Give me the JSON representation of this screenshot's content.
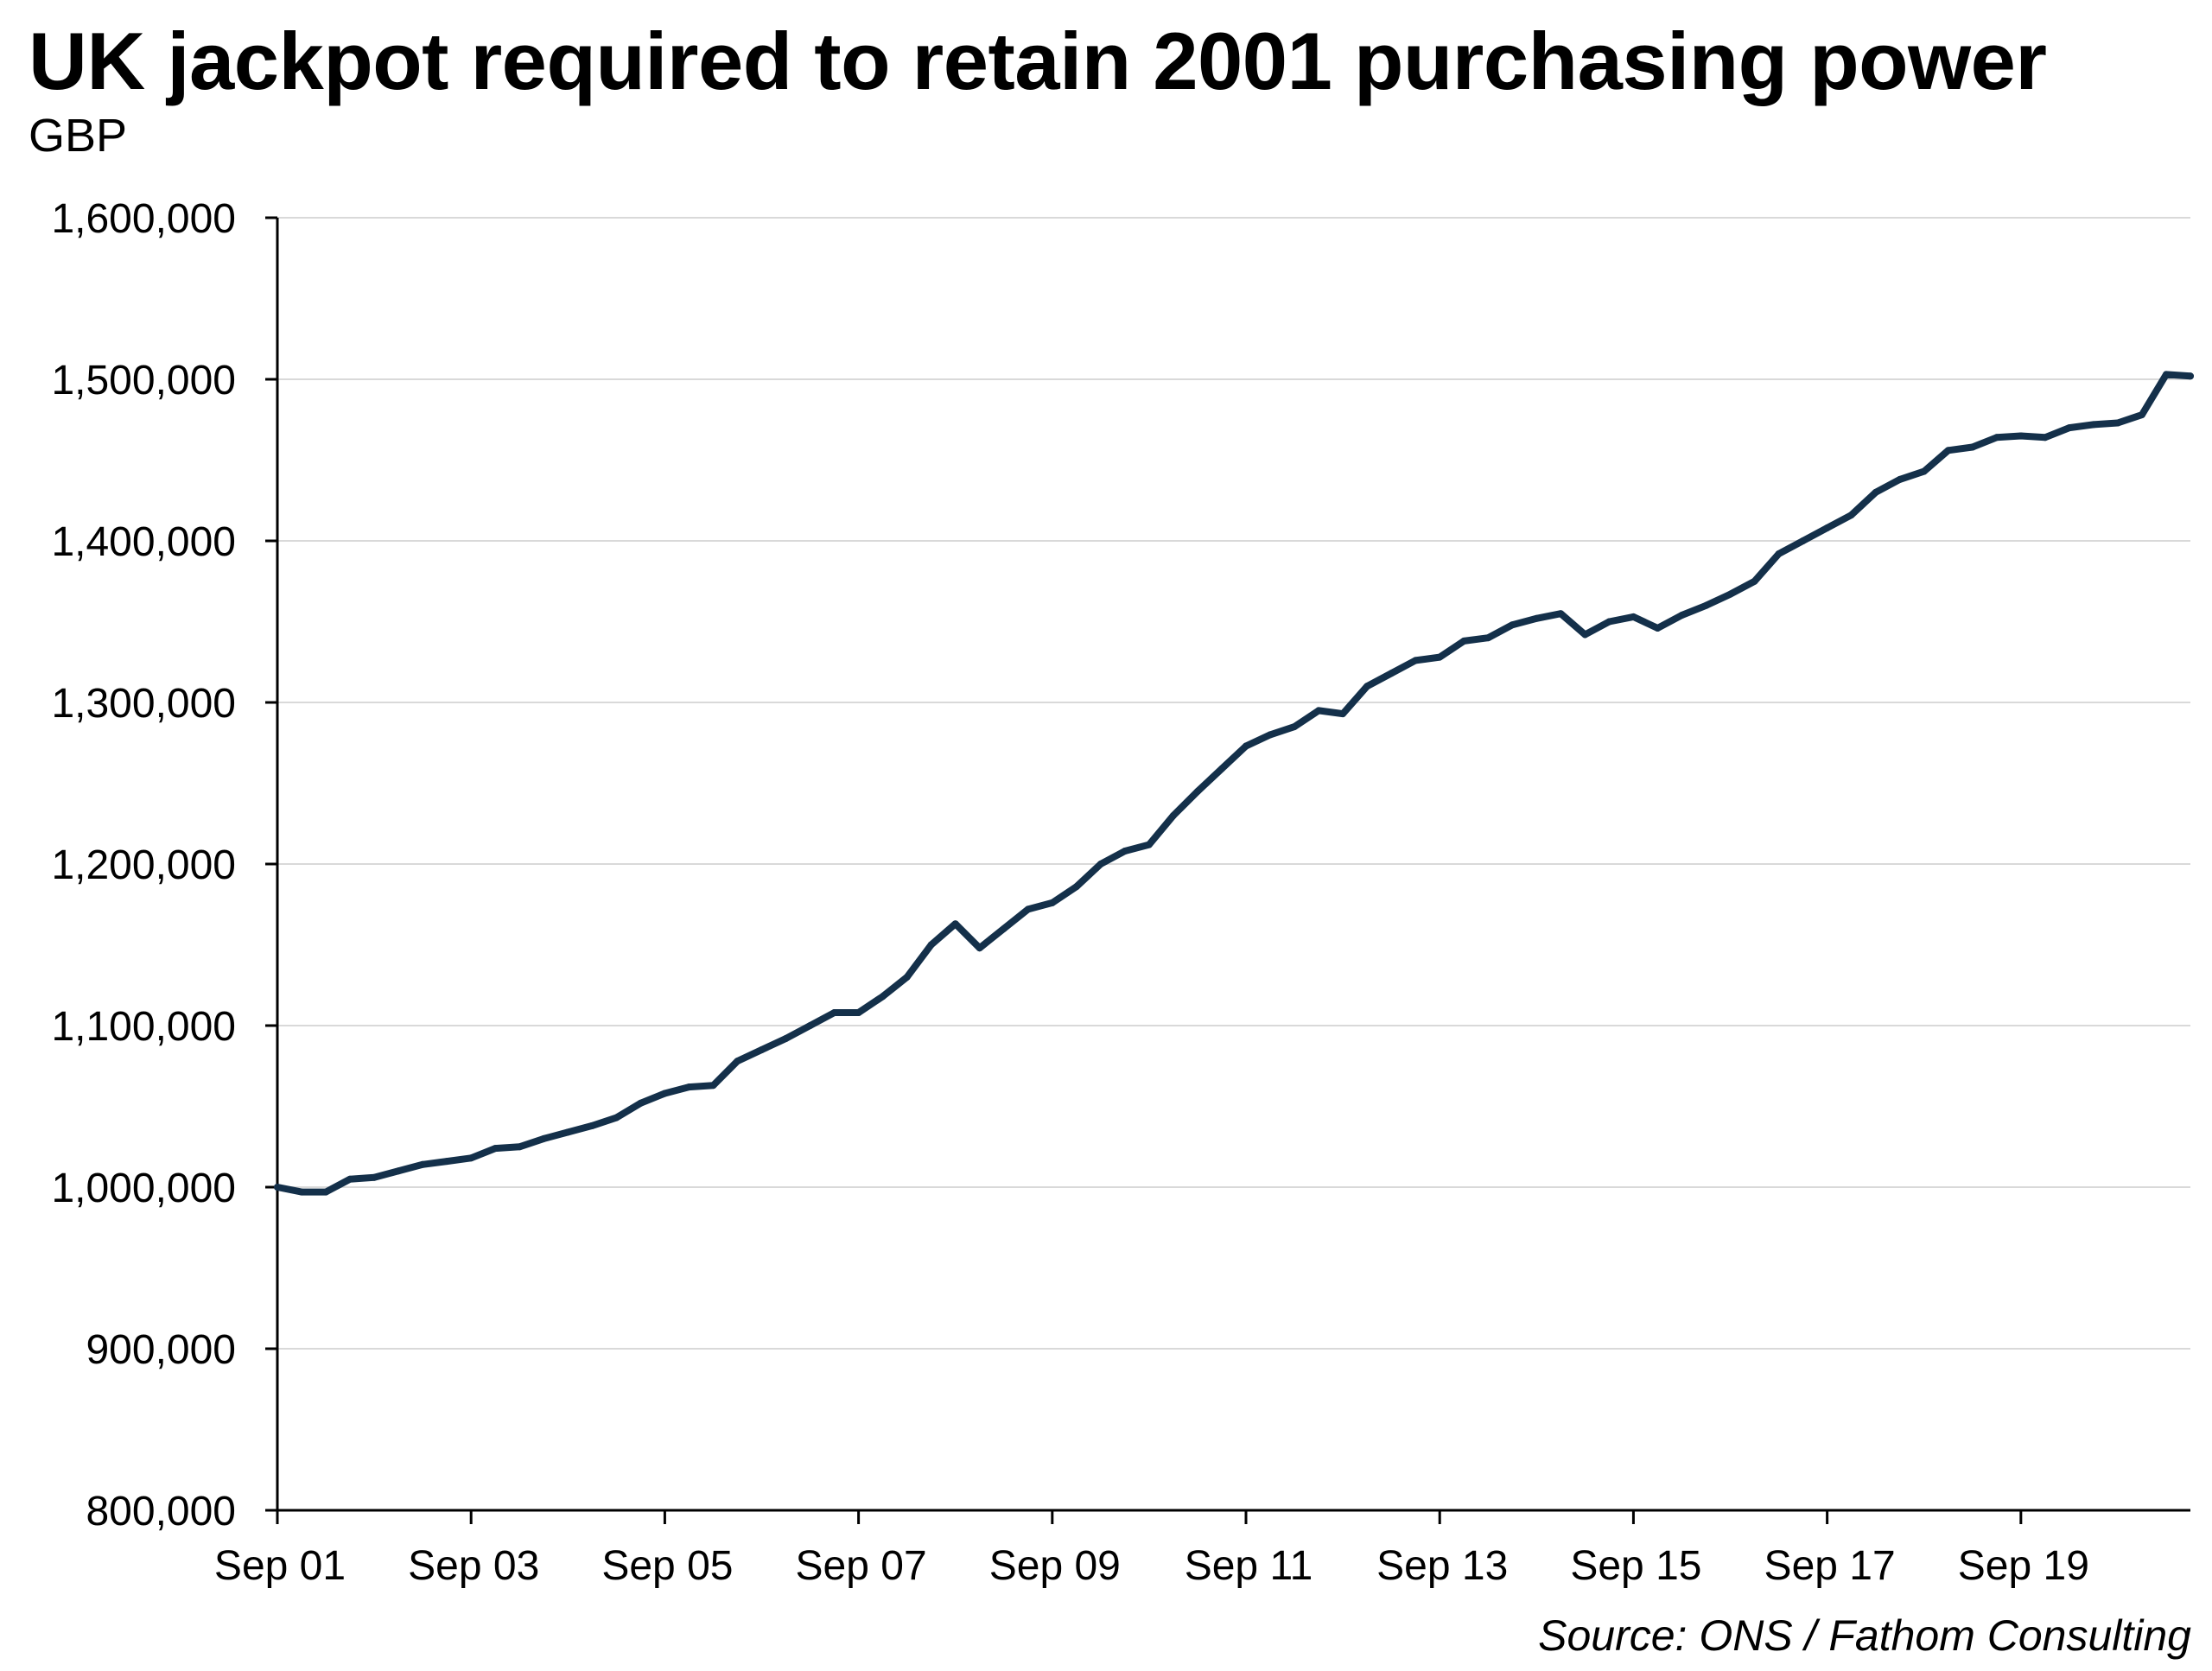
{
  "chart_data": {
    "type": "line",
    "title": "UK jackpot required to retain 2001 purchasing power",
    "subtitle": "GBP",
    "source": "Source: ONS / Fathom Consulting",
    "xlabel": "",
    "ylabel": "",
    "ylim": [
      800000,
      1600000
    ],
    "y_ticks": [
      800000,
      900000,
      1000000,
      1100000,
      1200000,
      1300000,
      1400000,
      1500000,
      1600000
    ],
    "y_tick_labels": [
      "800,000",
      "900,000",
      "1,000,000",
      "1,100,000",
      "1,200,000",
      "1,300,000",
      "1,400,000",
      "1,500,000",
      "1,600,000"
    ],
    "x_range": [
      "2001-09",
      "2021-06"
    ],
    "x_ticks": [
      "2001-09",
      "2003-09",
      "2005-09",
      "2007-09",
      "2009-09",
      "2011-09",
      "2013-09",
      "2015-09",
      "2017-09",
      "2019-09"
    ],
    "x_tick_labels": [
      "Sep 01",
      "Sep 03",
      "Sep 05",
      "Sep 07",
      "Sep 09",
      "Sep 11",
      "Sep 13",
      "Sep 15",
      "Sep 17",
      "Sep 19"
    ],
    "grid": "horizontal",
    "line_color": "#14304a",
    "gridline_color": "#d9d9d9",
    "series": [
      {
        "points": [
          [
            "2001-09",
            1000000
          ],
          [
            "2001-12",
            997000
          ],
          [
            "2002-03",
            997000
          ],
          [
            "2002-06",
            1005000
          ],
          [
            "2002-09",
            1006000
          ],
          [
            "2002-12",
            1010000
          ],
          [
            "2003-03",
            1014000
          ],
          [
            "2003-06",
            1016000
          ],
          [
            "2003-09",
            1018000
          ],
          [
            "2003-12",
            1024000
          ],
          [
            "2004-03",
            1025000
          ],
          [
            "2004-06",
            1030000
          ],
          [
            "2004-09",
            1034000
          ],
          [
            "2004-12",
            1038000
          ],
          [
            "2005-03",
            1043000
          ],
          [
            "2005-06",
            1052000
          ],
          [
            "2005-09",
            1058000
          ],
          [
            "2005-12",
            1062000
          ],
          [
            "2006-03",
            1063000
          ],
          [
            "2006-06",
            1078000
          ],
          [
            "2006-09",
            1085000
          ],
          [
            "2006-12",
            1092000
          ],
          [
            "2007-03",
            1100000
          ],
          [
            "2007-06",
            1108000
          ],
          [
            "2007-09",
            1108000
          ],
          [
            "2007-12",
            1118000
          ],
          [
            "2008-03",
            1130000
          ],
          [
            "2008-06",
            1150000
          ],
          [
            "2008-09",
            1163000
          ],
          [
            "2008-12",
            1148000
          ],
          [
            "2009-03",
            1160000
          ],
          [
            "2009-06",
            1172000
          ],
          [
            "2009-09",
            1176000
          ],
          [
            "2009-12",
            1186000
          ],
          [
            "2010-03",
            1200000
          ],
          [
            "2010-06",
            1208000
          ],
          [
            "2010-09",
            1212000
          ],
          [
            "2010-12",
            1230000
          ],
          [
            "2011-03",
            1245000
          ],
          [
            "2011-06",
            1259000
          ],
          [
            "2011-09",
            1273000
          ],
          [
            "2011-12",
            1280000
          ],
          [
            "2012-03",
            1285000
          ],
          [
            "2012-06",
            1295000
          ],
          [
            "2012-09",
            1293000
          ],
          [
            "2012-12",
            1310000
          ],
          [
            "2013-03",
            1318000
          ],
          [
            "2013-06",
            1326000
          ],
          [
            "2013-09",
            1328000
          ],
          [
            "2013-12",
            1338000
          ],
          [
            "2014-03",
            1340000
          ],
          [
            "2014-06",
            1348000
          ],
          [
            "2014-09",
            1352000
          ],
          [
            "2014-12",
            1355000
          ],
          [
            "2015-03",
            1342000
          ],
          [
            "2015-06",
            1350000
          ],
          [
            "2015-09",
            1353000
          ],
          [
            "2015-12",
            1346000
          ],
          [
            "2016-03",
            1354000
          ],
          [
            "2016-06",
            1360000
          ],
          [
            "2016-09",
            1367000
          ],
          [
            "2016-12",
            1375000
          ],
          [
            "2017-03",
            1392000
          ],
          [
            "2017-06",
            1400000
          ],
          [
            "2017-09",
            1408000
          ],
          [
            "2017-12",
            1416000
          ],
          [
            "2018-03",
            1430000
          ],
          [
            "2018-06",
            1438000
          ],
          [
            "2018-09",
            1443000
          ],
          [
            "2018-12",
            1456000
          ],
          [
            "2019-03",
            1458000
          ],
          [
            "2019-06",
            1464000
          ],
          [
            "2019-09",
            1465000
          ],
          [
            "2019-12",
            1464000
          ],
          [
            "2020-03",
            1470000
          ],
          [
            "2020-06",
            1472000
          ],
          [
            "2020-09",
            1473000
          ],
          [
            "2020-12",
            1478000
          ],
          [
            "2021-03",
            1503000
          ],
          [
            "2021-06",
            1502000
          ]
        ]
      }
    ]
  }
}
